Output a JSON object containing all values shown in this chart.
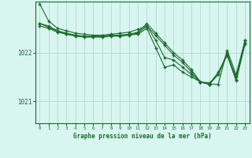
{
  "background_color": "#d8f5f0",
  "grid_color": "#b8ddd8",
  "line_color": "#1a6b2a",
  "xlabel": "Graphe pression niveau de la mer (hPa)",
  "yticks": [
    1021,
    1022
  ],
  "xticks": [
    0,
    1,
    2,
    3,
    4,
    5,
    6,
    7,
    8,
    9,
    10,
    11,
    12,
    13,
    14,
    15,
    16,
    17,
    18,
    19,
    20,
    21,
    22,
    23
  ],
  "xlim": [
    -0.5,
    23.5
  ],
  "ylim": [
    1020.55,
    1023.05
  ],
  "series": [
    [
      1023.0,
      1022.65,
      1022.5,
      1022.45,
      1022.4,
      1022.38,
      1022.36,
      1022.36,
      1022.38,
      1022.4,
      1022.42,
      1022.48,
      1022.55,
      1022.35,
      1022.15,
      1021.95,
      1021.8,
      1021.6,
      1021.4,
      1021.35,
      1021.35,
      1022.05,
      1021.55,
      1022.25
    ],
    [
      1022.6,
      1022.55,
      1022.45,
      1022.4,
      1022.36,
      1022.34,
      1022.34,
      1022.34,
      1022.36,
      1022.36,
      1022.38,
      1022.42,
      1022.6,
      1022.4,
      1022.2,
      1022.0,
      1021.85,
      1021.65,
      1021.4,
      1021.35,
      1021.6,
      1021.95,
      1021.5,
      1022.25
    ],
    [
      1022.6,
      1022.52,
      1022.44,
      1022.39,
      1022.35,
      1022.33,
      1022.33,
      1022.33,
      1022.35,
      1022.35,
      1022.37,
      1022.4,
      1022.55,
      1022.25,
      1021.9,
      1021.85,
      1021.7,
      1021.55,
      1021.4,
      1021.38,
      1021.55,
      1022.0,
      1021.45,
      1022.2
    ],
    [
      1022.55,
      1022.5,
      1022.42,
      1022.38,
      1022.34,
      1022.32,
      1022.32,
      1022.32,
      1022.34,
      1022.34,
      1022.36,
      1022.38,
      1022.5,
      1022.1,
      1021.7,
      1021.75,
      1021.6,
      1021.5,
      1021.4,
      1021.35,
      1021.55,
      1021.95,
      1021.42,
      1022.18
    ]
  ]
}
